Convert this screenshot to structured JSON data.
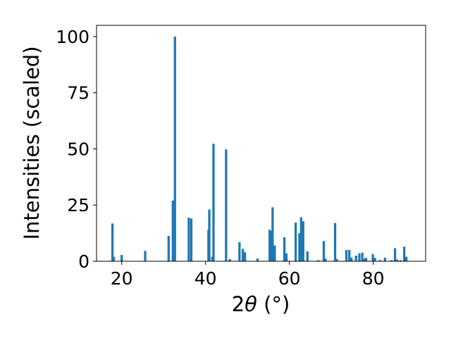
{
  "chart_data": {
    "type": "bar",
    "xlabel": "2θ (°)",
    "xlabel_parts": {
      "prefix": "2",
      "symbol": "θ",
      "suffix": " (°)"
    },
    "ylabel": "Intensities (scaled)",
    "xlim": [
      14,
      92.5
    ],
    "ylim": [
      0,
      105
    ],
    "xticks": [
      20,
      40,
      60,
      80
    ],
    "yticks": [
      0,
      25,
      50,
      75,
      100
    ],
    "bar_width": 0.55,
    "bar_color": "#1f77b4",
    "grid": false,
    "x": [
      17.8,
      18.1,
      20.0,
      25.6,
      31.2,
      32.2,
      32.7,
      36.0,
      36.6,
      40.7,
      40.9,
      41.6,
      41.9,
      44.9,
      45.8,
      48.1,
      48.9,
      49.4,
      52.4,
      55.3,
      55.6,
      56.0,
      56.5,
      58.8,
      59.3,
      61.5,
      62.4,
      62.8,
      63.3,
      64.3,
      66.9,
      68.2,
      68.6,
      70.9,
      71.3,
      73.6,
      74.3,
      74.8,
      75.9,
      76.7,
      77.4,
      77.8,
      78.3,
      79.9,
      80.4,
      81.6,
      82.8,
      84.4,
      85.2,
      85.7,
      86.5,
      87.4,
      87.9
    ],
    "values": [
      16.8,
      2.0,
      2.8,
      4.6,
      11.3,
      27.0,
      100.0,
      19.4,
      19.0,
      14.0,
      23.0,
      2.0,
      52.3,
      49.8,
      1.0,
      8.5,
      5.5,
      4.0,
      1.2,
      14.0,
      13.5,
      24.0,
      7.0,
      10.7,
      3.5,
      17.2,
      12.5,
      19.6,
      17.8,
      4.4,
      0.5,
      9.0,
      1.2,
      17.0,
      1.0,
      5.0,
      5.0,
      1.6,
      2.5,
      3.5,
      3.8,
      1.2,
      1.5,
      3.2,
      1.5,
      0.5,
      1.6,
      0.5,
      5.8,
      0.8,
      0.5,
      6.5,
      2.0
    ]
  }
}
